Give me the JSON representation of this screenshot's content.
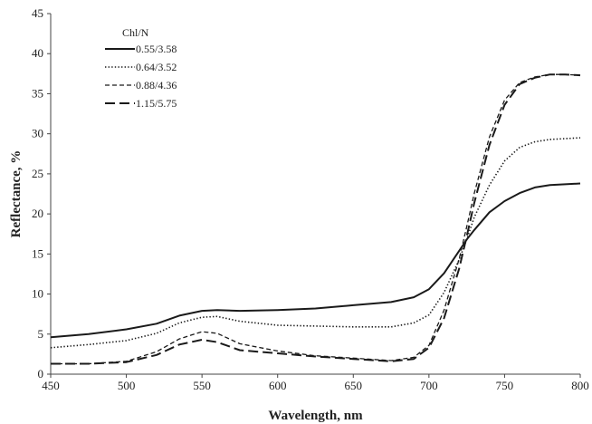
{
  "chart_data": {
    "type": "line",
    "title": "",
    "xlabel": "Wavelength, nm",
    "ylabel": "Reflectance, %",
    "xlim": [
      450,
      800
    ],
    "ylim": [
      0,
      45
    ],
    "x_ticks": [
      450,
      500,
      550,
      600,
      650,
      700,
      750,
      800
    ],
    "y_ticks": [
      0,
      5,
      10,
      15,
      20,
      25,
      30,
      35,
      40,
      45
    ],
    "grid": false,
    "legend": {
      "title": "Chl/N",
      "position": "top-left"
    },
    "x": [
      450,
      475,
      500,
      520,
      535,
      550,
      560,
      575,
      600,
      625,
      650,
      675,
      690,
      700,
      710,
      720,
      725,
      730,
      740,
      750,
      760,
      770,
      780,
      790,
      800
    ],
    "series": [
      {
        "name": "0.55/3.58",
        "style": "solid",
        "color": "#1a1a1a",
        "values": [
          4.6,
          5.0,
          5.6,
          6.3,
          7.3,
          7.9,
          8.0,
          7.9,
          8.0,
          8.2,
          8.6,
          9.0,
          9.6,
          10.6,
          12.6,
          15.4,
          16.8,
          18.0,
          20.2,
          21.6,
          22.6,
          23.3,
          23.6,
          23.7,
          23.8
        ]
      },
      {
        "name": "0.64/3.52",
        "style": "dotted",
        "color": "#1a1a1a",
        "values": [
          3.3,
          3.7,
          4.2,
          5.1,
          6.4,
          7.1,
          7.2,
          6.6,
          6.1,
          6.0,
          5.9,
          5.9,
          6.4,
          7.4,
          10.2,
          14.3,
          16.8,
          19.6,
          23.6,
          26.6,
          28.3,
          29.0,
          29.3,
          29.4,
          29.5
        ]
      },
      {
        "name": "0.88/4.36",
        "style": "dashed",
        "color": "#1a1a1a",
        "values": [
          1.3,
          1.3,
          1.6,
          2.8,
          4.4,
          5.3,
          5.1,
          3.8,
          2.9,
          2.3,
          2.0,
          1.7,
          2.1,
          3.6,
          8.0,
          14.4,
          18.4,
          22.6,
          29.6,
          34.2,
          36.4,
          37.1,
          37.4,
          37.4,
          37.3
        ]
      },
      {
        "name": "1.15/5.75",
        "style": "long-dash",
        "color": "#1a1a1a",
        "values": [
          1.3,
          1.3,
          1.5,
          2.4,
          3.7,
          4.3,
          4.0,
          3.0,
          2.6,
          2.2,
          1.9,
          1.6,
          1.9,
          3.3,
          7.0,
          13.2,
          17.2,
          21.4,
          28.6,
          33.6,
          36.2,
          37.0,
          37.4,
          37.4,
          37.3
        ]
      }
    ]
  }
}
